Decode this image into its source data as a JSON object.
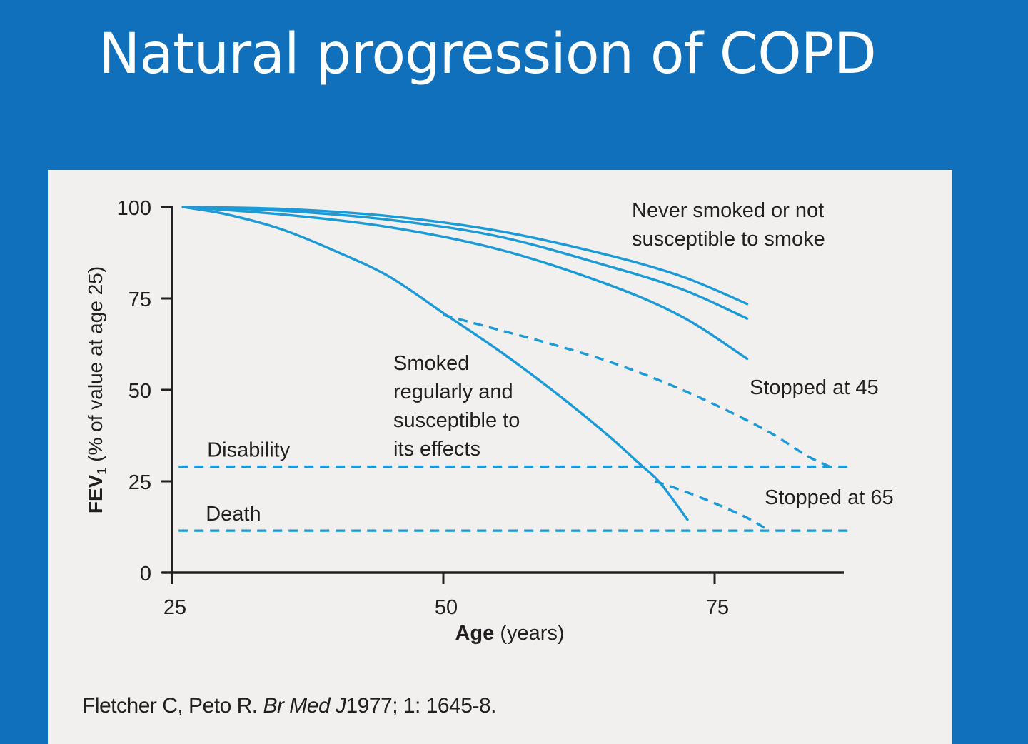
{
  "slide": {
    "title": "Natural progression of COPD",
    "background_color": "#1070bc",
    "panel_color": "#f1f0ef"
  },
  "citation": {
    "authors": "Fletcher C, Peto R.",
    "journal": "Br Med J",
    "details": "1977; 1: 1645-8."
  },
  "chart_data": {
    "type": "line",
    "title": "",
    "xlabel_bold": "Age",
    "xlabel_rest": "(years)",
    "ylabel_prefix": "FEV",
    "ylabel_subscript": "1",
    "ylabel_suffix": "(% of value at age 25)",
    "xlim": [
      25,
      87
    ],
    "ylim": [
      0,
      100
    ],
    "x_ticks": [
      {
        "value": 25,
        "label": "25"
      },
      {
        "value": 50,
        "label": "50"
      },
      {
        "value": 75,
        "label": "75"
      }
    ],
    "y_ticks": [
      {
        "value": 0,
        "label": "0"
      },
      {
        "value": 25,
        "label": "25"
      },
      {
        "value": 50,
        "label": "50"
      },
      {
        "value": 75,
        "label": "75"
      },
      {
        "value": 100,
        "label": "100"
      }
    ],
    "grid": false,
    "line_color": "#1a9ad6",
    "axis_color": "#231f20",
    "series": [
      {
        "key": "never-smoked-1",
        "style": "solid",
        "points": [
          [
            26,
            100
          ],
          [
            35,
            99.5
          ],
          [
            45,
            97.5
          ],
          [
            55,
            93.5
          ],
          [
            65,
            87
          ],
          [
            72,
            81
          ],
          [
            78,
            73.5
          ]
        ]
      },
      {
        "key": "never-smoked-2",
        "style": "solid",
        "points": [
          [
            26,
            100
          ],
          [
            35,
            99
          ],
          [
            45,
            96.5
          ],
          [
            55,
            92
          ],
          [
            65,
            84
          ],
          [
            72,
            77.5
          ],
          [
            78,
            69.5
          ]
        ]
      },
      {
        "key": "never-smoked-3",
        "style": "solid",
        "points": [
          [
            26,
            100
          ],
          [
            35,
            98
          ],
          [
            45,
            94.5
          ],
          [
            55,
            88.5
          ],
          [
            65,
            79
          ],
          [
            72,
            70
          ],
          [
            78,
            58.5
          ]
        ]
      },
      {
        "key": "smoked-susceptible",
        "style": "solid",
        "points": [
          [
            26,
            100
          ],
          [
            30,
            98
          ],
          [
            35,
            94
          ],
          [
            40,
            88
          ],
          [
            45,
            81
          ],
          [
            50,
            71
          ],
          [
            55,
            61
          ],
          [
            60,
            50
          ],
          [
            65,
            38
          ],
          [
            68,
            30
          ],
          [
            70,
            24.5
          ],
          [
            72.5,
            14.5
          ]
        ]
      },
      {
        "key": "stopped-45",
        "style": "dashed",
        "points": [
          [
            50,
            70.5
          ],
          [
            55,
            66.5
          ],
          [
            60,
            62.5
          ],
          [
            65,
            58
          ],
          [
            70,
            52.5
          ],
          [
            75,
            46
          ],
          [
            80,
            38.5
          ],
          [
            83.5,
            32
          ],
          [
            86,
            28.5
          ]
        ]
      },
      {
        "key": "stopped-65",
        "style": "dashed",
        "points": [
          [
            69.5,
            25
          ],
          [
            72,
            22.5
          ],
          [
            75,
            19
          ],
          [
            78,
            15
          ],
          [
            80,
            11.5
          ]
        ]
      }
    ],
    "thresholds": [
      {
        "label": "Disability",
        "value": 29,
        "x_from": 26,
        "x_to": 86
      },
      {
        "label": "Death",
        "value": 11.5,
        "x_from": 26,
        "x_to": 86
      }
    ],
    "annotations": {
      "never_smoked": [
        "Never smoked or not",
        "susceptible to smoke"
      ],
      "smoked_regularly": [
        "Smoked",
        "regularly and",
        "susceptible to",
        "its effects"
      ],
      "stopped_45": "Stopped at 45",
      "stopped_65": "Stopped at 65"
    }
  }
}
